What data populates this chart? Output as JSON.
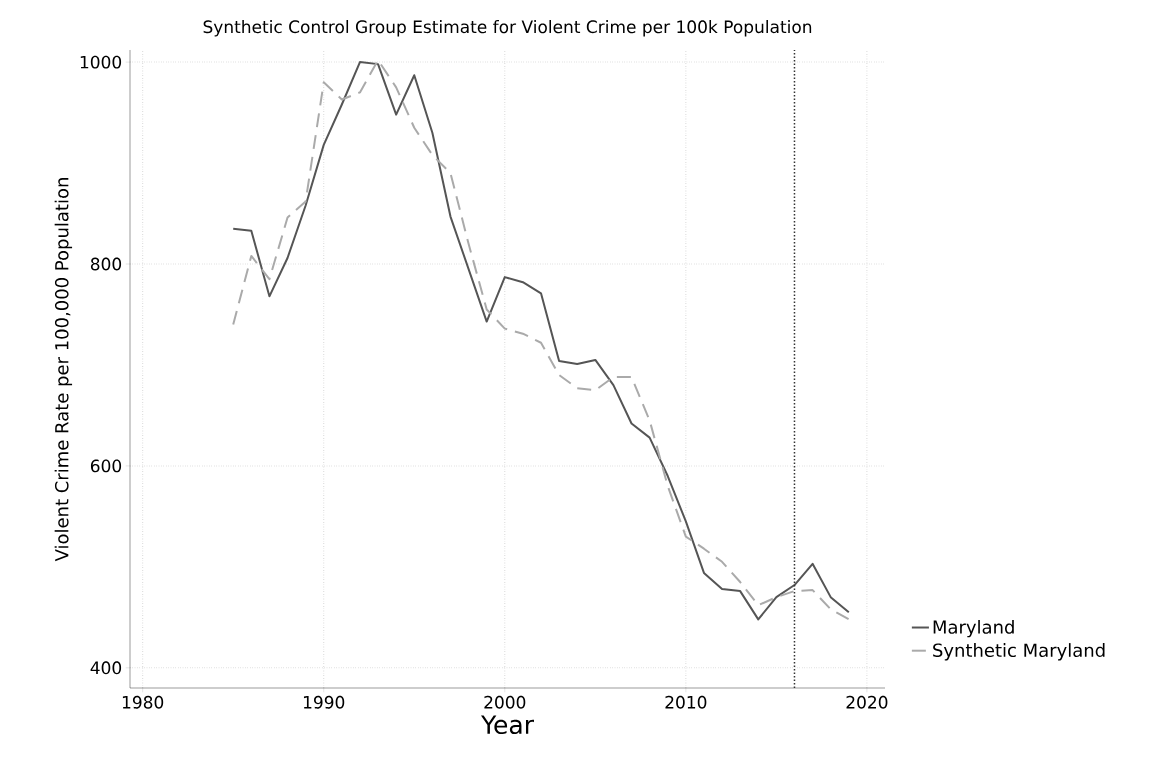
{
  "chart_data": {
    "type": "line",
    "title": "Synthetic Control Group Estimate for Violent Crime per 100k Population",
    "xlabel": "Year",
    "ylabel": "Violent Crime Rate per 100,000 Population",
    "x": [
      1985,
      1986,
      1987,
      1988,
      1989,
      1990,
      1991,
      1992,
      1993,
      1994,
      1995,
      1996,
      1997,
      1998,
      1999,
      2000,
      2001,
      2002,
      2003,
      2004,
      2005,
      2006,
      2007,
      2008,
      2009,
      2010,
      2011,
      2012,
      2013,
      2014,
      2015,
      2016,
      2017,
      2018,
      2019
    ],
    "series": [
      {
        "name": "Maryland",
        "color": "#555555",
        "line_style": "solid",
        "values": [
          835,
          833,
          768,
          806,
          858,
          918,
          958,
          1000,
          998,
          948,
          987,
          930,
          847,
          795,
          743,
          787,
          782,
          771,
          704,
          701,
          705,
          680,
          642,
          628,
          590,
          545,
          494,
          478,
          476,
          448,
          470,
          482,
          503,
          470,
          455
        ]
      },
      {
        "name": "Synthetic Maryland",
        "color": "#aaaaaa",
        "line_style": "dashed",
        "values": [
          740,
          808,
          785,
          846,
          862,
          980,
          963,
          970,
          1002,
          975,
          935,
          908,
          890,
          820,
          755,
          736,
          731,
          722,
          690,
          677,
          675,
          688,
          688,
          645,
          580,
          530,
          518,
          505,
          485,
          462,
          470,
          476,
          477,
          458,
          448
        ]
      }
    ],
    "xlim": [
      1979.3,
      2021
    ],
    "ylim": [
      380,
      1012
    ],
    "xticks": [
      1980,
      1990,
      2000,
      2010,
      2020
    ],
    "yticks": [
      400,
      600,
      800,
      1000
    ],
    "grid": true,
    "legend": "right",
    "marker": "none",
    "ref_lines": [
      {
        "axis": "x",
        "value": 2016,
        "color": "#333333",
        "line_style": "dotted"
      }
    ]
  }
}
